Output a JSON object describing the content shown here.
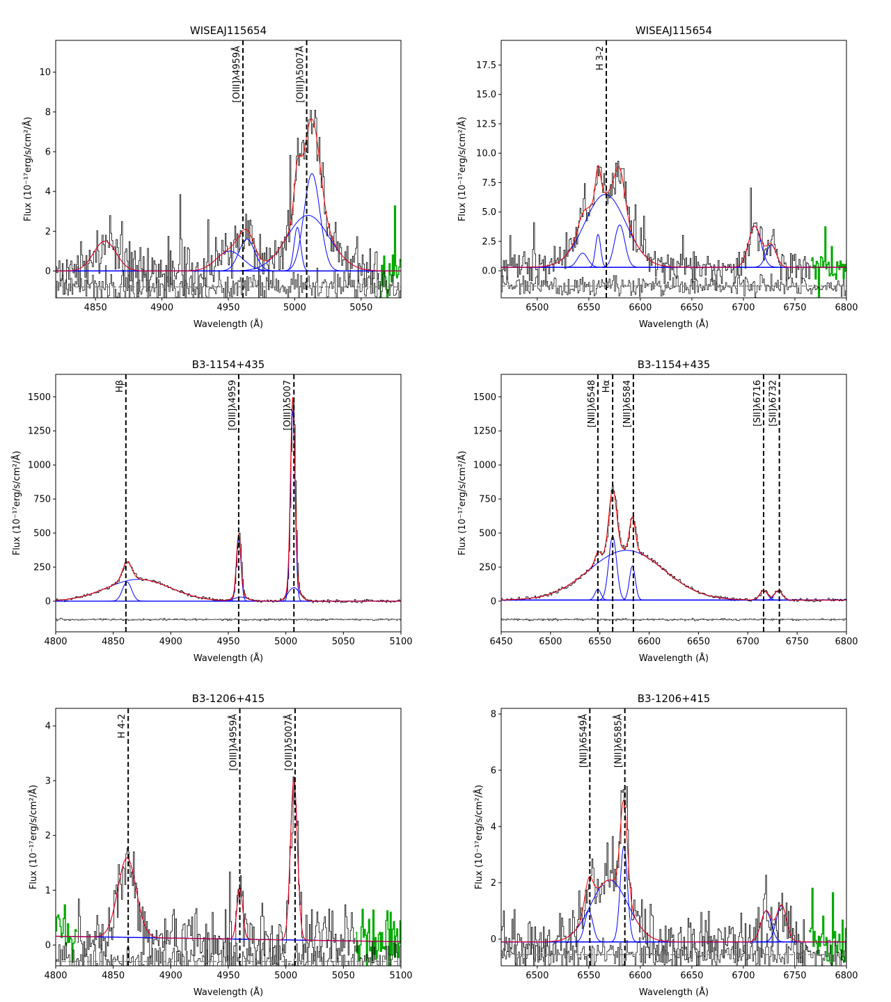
{
  "figure": {
    "colors": {
      "data": "#000000",
      "total_fit": "#ff0000",
      "component": "#0000ff",
      "masked": "#00aa00",
      "residual_ref": "#808080",
      "line_marker": "#000000"
    }
  },
  "chart_data": [
    {
      "type": "line",
      "title": "WISEAJ115654",
      "xlabel": "Wavelength (Å)",
      "ylabel": "Flux (10⁻¹⁷erg/s/cm²/Å)",
      "xlim": [
        4820,
        5080
      ],
      "ylim": [
        -1.35,
        11.6
      ],
      "xticks": [
        4850,
        4900,
        4950,
        5000,
        5050
      ],
      "yticks": [
        0,
        2,
        4,
        6,
        8,
        10
      ],
      "yticklabels": [
        "0",
        "2",
        "4",
        "6",
        "8",
        "10"
      ],
      "baseline": 0,
      "residual_offset": -0.8,
      "noise": 1.3,
      "spike": 0.35,
      "lines": [
        {
          "label": "[OIII]λ4959Å",
          "x": 4961
        },
        {
          "label": "[OIII]λ5007Å",
          "x": 5009
        }
      ],
      "components": [
        {
          "center": 4857,
          "amp": 1.5,
          "sigma": 8.5
        },
        {
          "center": 4951,
          "amp": 1.0,
          "sigma": 10
        },
        {
          "center": 4964,
          "amp": 1.6,
          "sigma": 6
        },
        {
          "center": 5002,
          "amp": 2.2,
          "sigma": 2.5
        },
        {
          "center": 5010,
          "amp": 2.8,
          "sigma": 16
        },
        {
          "center": 5013,
          "amp": 4.9,
          "sigma": 6
        }
      ],
      "masked_ranges": [
        [
          5063,
          5080
        ]
      ]
    },
    {
      "type": "line",
      "title": "WISEAJ115654",
      "xlabel": "Wavelength (Å)",
      "ylabel": "Flux (10⁻¹⁷erg/s/cm²/Å)",
      "xlim": [
        6465,
        6800
      ],
      "ylim": [
        -2.3,
        19.6
      ],
      "xticks": [
        6500,
        6550,
        6600,
        6650,
        6700,
        6750,
        6800
      ],
      "yticks": [
        0,
        2.5,
        5,
        7.5,
        10,
        12.5,
        15,
        17.5
      ],
      "yticklabels": [
        "0.0",
        "2.5",
        "5.0",
        "7.5",
        "10.0",
        "12.5",
        "15.0",
        "17.5"
      ],
      "baseline": 0.3,
      "residual_offset": -1.3,
      "noise": 1.4,
      "spike": 0.3,
      "lines": [
        {
          "label": "H 3-2",
          "x": 6567
        }
      ],
      "components": [
        {
          "center": 6566,
          "amp": 6.2,
          "sigma": 20
        },
        {
          "center": 6544,
          "amp": 1.2,
          "sigma": 5
        },
        {
          "center": 6559,
          "amp": 2.8,
          "sigma": 2.5
        },
        {
          "center": 6580,
          "amp": 3.6,
          "sigma": 5
        },
        {
          "center": 6711,
          "amp": 3.5,
          "sigma": 6
        },
        {
          "center": 6727,
          "amp": 1.9,
          "sigma": 5
        }
      ],
      "masked_ranges": [
        [
          6765,
          6800
        ]
      ]
    },
    {
      "type": "line",
      "title": "B3-1154+435",
      "xlabel": "Wavelength (Å)",
      "ylabel": "Flux (10⁻¹⁷erg/s/cm²/Å)",
      "xlim": [
        4800,
        5100
      ],
      "ylim": [
        -225,
        1665
      ],
      "xticks": [
        4800,
        4850,
        4900,
        4950,
        5000,
        5050,
        5100
      ],
      "yticks": [
        0,
        250,
        500,
        750,
        1000,
        1250,
        1500
      ],
      "yticklabels": [
        "0",
        "250",
        "500",
        "750",
        "1000",
        "1250",
        "1500"
      ],
      "baseline": 0,
      "residual_offset": -135,
      "noise": 12,
      "spike": 0,
      "lines": [
        {
          "label": "Hβ",
          "x": 4861
        },
        {
          "label": "[OIII]λ4959",
          "x": 4959
        },
        {
          "label": "[OIII]λ5007",
          "x": 5007
        }
      ],
      "components": [
        {
          "center": 4862,
          "amp": 140,
          "sigma": 4
        },
        {
          "center": 4872,
          "amp": 160,
          "sigma": 28
        },
        {
          "center": 4959,
          "amp": 460,
          "sigma": 2
        },
        {
          "center": 4961,
          "amp": 30,
          "sigma": 6
        },
        {
          "center": 5006,
          "amp": 1400,
          "sigma": 2
        },
        {
          "center": 5007,
          "amp": 100,
          "sigma": 5
        }
      ],
      "masked_ranges": []
    },
    {
      "type": "line",
      "title": "B3-1154+435",
      "xlabel": "Wavelength (Å)",
      "ylabel": "Flux (10⁻¹⁷erg/s/cm²/Å)",
      "xlim": [
        6450,
        6800
      ],
      "ylim": [
        -225,
        1665
      ],
      "xticks": [
        6450,
        6500,
        6550,
        6600,
        6650,
        6700,
        6750,
        6800
      ],
      "yticks": [
        0,
        250,
        500,
        750,
        1000,
        1250,
        1500
      ],
      "yticklabels": [
        "0",
        "250",
        "500",
        "750",
        "1000",
        "1250",
        "1500"
      ],
      "baseline": 8,
      "residual_offset": -135,
      "noise": 12,
      "spike": 0,
      "lines": [
        {
          "label": "[NII]λ6548",
          "x": 6548
        },
        {
          "label": "Hα",
          "x": 6563
        },
        {
          "label": "[NII]λ6584",
          "x": 6584
        },
        {
          "label": "[SII]λ6716",
          "x": 6716
        },
        {
          "label": "[SII]λ6732",
          "x": 6732
        }
      ],
      "components": [
        {
          "center": 6577,
          "amp": 365,
          "sigma": 38
        },
        {
          "center": 6563,
          "amp": 470,
          "sigma": 4
        },
        {
          "center": 6548,
          "amp": 80,
          "sigma": 3
        },
        {
          "center": 6583,
          "amp": 250,
          "sigma": 3
        },
        {
          "center": 6716,
          "amp": 70,
          "sigma": 4
        },
        {
          "center": 6731,
          "amp": 70,
          "sigma": 4
        }
      ],
      "masked_ranges": []
    },
    {
      "type": "line",
      "title": "B3-1206+415",
      "xlabel": "Wavelength (Å)",
      "ylabel": "Flux (10⁻¹⁷erg/s/cm²/Å)",
      "xlim": [
        4800,
        5100
      ],
      "ylim": [
        -0.38,
        4.32
      ],
      "xticks": [
        4800,
        4850,
        4900,
        4950,
        5000,
        5050,
        5100
      ],
      "yticks": [
        0,
        1,
        2,
        3,
        4
      ],
      "yticklabels": [
        "0",
        "1",
        "2",
        "3",
        "4"
      ],
      "baseline": 0.16,
      "baseline_slope": -0.1,
      "residual_offset": -0.3,
      "noise": 0.55,
      "spike": 0.3,
      "lines": [
        {
          "label": "H 4-2",
          "x": 4863
        },
        {
          "label": "[OIII]λ4959Å",
          "x": 4960
        },
        {
          "label": "[OIII]λ5007Å",
          "x": 5008
        }
      ],
      "components": [
        {
          "center": 4862,
          "amp": 1.45,
          "sigma": 8
        },
        {
          "center": 4960,
          "amp": 0.95,
          "sigma": 2.5
        },
        {
          "center": 5007,
          "amp": 2.95,
          "sigma": 3
        }
      ],
      "masked_ranges": [
        [
          4800,
          4818
        ],
        [
          5060,
          5100
        ]
      ]
    },
    {
      "type": "line",
      "title": "B3-1206+415",
      "xlabel": "Wavelength (Å)",
      "ylabel": "Flux (10⁻¹⁷erg/s/cm²/Å)",
      "xlim": [
        6465,
        6800
      ],
      "ylim": [
        -0.95,
        8.2
      ],
      "xticks": [
        6500,
        6550,
        6600,
        6650,
        6700,
        6750,
        6800
      ],
      "yticks": [
        0,
        2,
        4,
        6,
        8
      ],
      "yticklabels": [
        "0",
        "2",
        "4",
        "6",
        "8"
      ],
      "baseline": -0.1,
      "residual_offset": -0.55,
      "noise": 0.95,
      "spike": 0.3,
      "lines": [
        {
          "label": "[NII]λ6549Å",
          "x": 6551
        },
        {
          "label": "[NII]λ6585Å",
          "x": 6585
        }
      ],
      "components": [
        {
          "center": 6570,
          "amp": 2.2,
          "sigma": 18
        },
        {
          "center": 6550,
          "amp": 1.1,
          "sigma": 4
        },
        {
          "center": 6584,
          "amp": 3.4,
          "sigma": 3.5
        },
        {
          "center": 6722,
          "amp": 1.1,
          "sigma": 5
        },
        {
          "center": 6737,
          "amp": 1.3,
          "sigma": 5
        }
      ],
      "masked_ranges": [
        [
          6763,
          6800
        ]
      ]
    }
  ]
}
